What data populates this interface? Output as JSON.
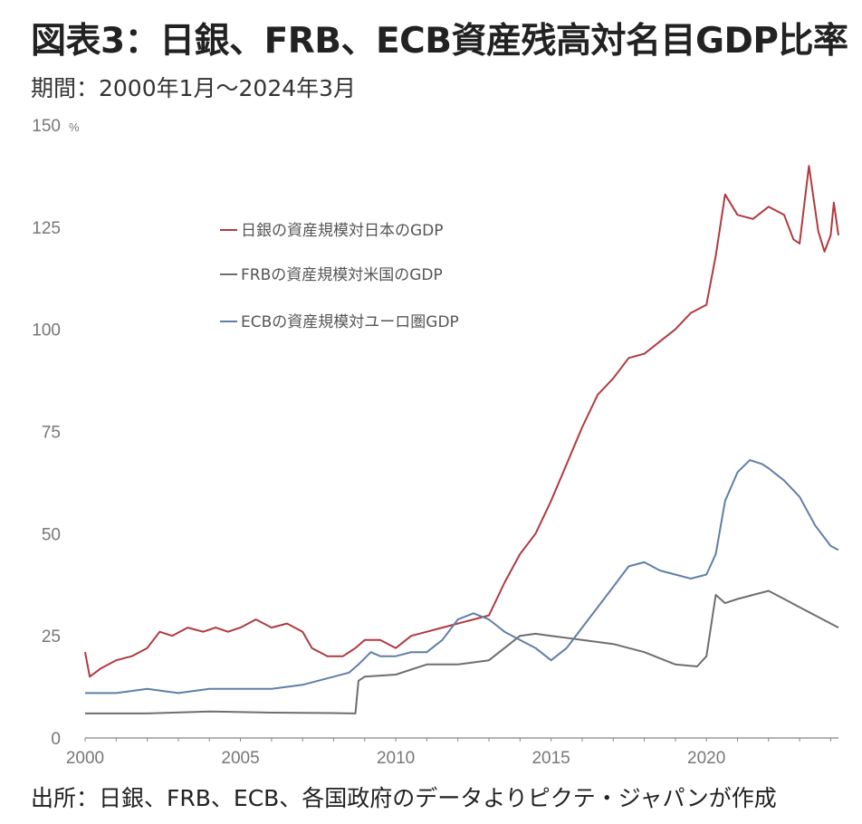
{
  "title": "図表3：日銀、FRB、ECB資産残高対名目GDP比率",
  "subtitle": "期間：2000年1月～2024年3月",
  "source": "出所：日銀、FRB、ECB、各国政府のデータよりピクテ・ジャパンが作成",
  "colors": {
    "boj": "#b03a3f",
    "frb": "#6e6e6e",
    "ecb": "#5f7fa8",
    "axis": "#888888",
    "text": "#777777"
  },
  "chart_data": {
    "type": "line",
    "ylim": [
      0,
      150
    ],
    "xlim": [
      2000,
      2024.25
    ],
    "y_unit": "%",
    "yticks": [
      0,
      25,
      50,
      75,
      100,
      125,
      150
    ],
    "xticks": [
      2000,
      2005,
      2010,
      2015,
      2020
    ],
    "legend_position": "top-left",
    "series": [
      {
        "name": "日銀の資産規模対日本のGDP",
        "color": "#b03a3f",
        "points": [
          [
            2000.0,
            21
          ],
          [
            2000.15,
            15
          ],
          [
            2000.5,
            17
          ],
          [
            2001.0,
            19
          ],
          [
            2001.5,
            20
          ],
          [
            2002.0,
            22
          ],
          [
            2002.4,
            26
          ],
          [
            2002.8,
            25
          ],
          [
            2003.3,
            27
          ],
          [
            2003.8,
            26
          ],
          [
            2004.2,
            27
          ],
          [
            2004.6,
            26
          ],
          [
            2005.0,
            27
          ],
          [
            2005.5,
            29
          ],
          [
            2006.0,
            27
          ],
          [
            2006.5,
            28
          ],
          [
            2007.0,
            26
          ],
          [
            2007.3,
            22
          ],
          [
            2007.8,
            20
          ],
          [
            2008.3,
            20
          ],
          [
            2008.7,
            22
          ],
          [
            2009.0,
            24
          ],
          [
            2009.5,
            24
          ],
          [
            2010.0,
            22
          ],
          [
            2010.5,
            25
          ],
          [
            2011.0,
            26
          ],
          [
            2011.5,
            27
          ],
          [
            2012.0,
            28
          ],
          [
            2012.5,
            29
          ],
          [
            2013.0,
            30
          ],
          [
            2013.5,
            38
          ],
          [
            2014.0,
            45
          ],
          [
            2014.5,
            50
          ],
          [
            2015.0,
            58
          ],
          [
            2015.5,
            67
          ],
          [
            2016.0,
            76
          ],
          [
            2016.5,
            84
          ],
          [
            2017.0,
            88
          ],
          [
            2017.5,
            93
          ],
          [
            2018.0,
            94
          ],
          [
            2018.5,
            97
          ],
          [
            2019.0,
            100
          ],
          [
            2019.5,
            104
          ],
          [
            2020.0,
            106
          ],
          [
            2020.3,
            118
          ],
          [
            2020.6,
            133
          ],
          [
            2021.0,
            128
          ],
          [
            2021.5,
            127
          ],
          [
            2022.0,
            130
          ],
          [
            2022.5,
            128
          ],
          [
            2022.8,
            122
          ],
          [
            2023.0,
            121
          ],
          [
            2023.3,
            140
          ],
          [
            2023.6,
            124
          ],
          [
            2023.8,
            119
          ],
          [
            2024.0,
            123
          ],
          [
            2024.1,
            131
          ],
          [
            2024.25,
            123
          ]
        ]
      },
      {
        "name": "FRBの資産規模対米国のGDP",
        "color": "#6e6e6e",
        "points": [
          [
            2000.0,
            6
          ],
          [
            2002.0,
            6
          ],
          [
            2004.0,
            6.5
          ],
          [
            2006.0,
            6.2
          ],
          [
            2008.0,
            6.1
          ],
          [
            2008.7,
            6
          ],
          [
            2008.8,
            14
          ],
          [
            2009.0,
            15
          ],
          [
            2010.0,
            15.5
          ],
          [
            2011.0,
            18
          ],
          [
            2012.0,
            18
          ],
          [
            2013.0,
            19
          ],
          [
            2014.0,
            25
          ],
          [
            2014.5,
            25.5
          ],
          [
            2015.0,
            25
          ],
          [
            2016.0,
            24
          ],
          [
            2017.0,
            23
          ],
          [
            2018.0,
            21
          ],
          [
            2019.0,
            18
          ],
          [
            2019.7,
            17.5
          ],
          [
            2020.0,
            20
          ],
          [
            2020.3,
            35
          ],
          [
            2020.6,
            33
          ],
          [
            2021.0,
            34
          ],
          [
            2021.5,
            35
          ],
          [
            2022.0,
            36
          ],
          [
            2022.5,
            34
          ],
          [
            2023.0,
            32
          ],
          [
            2023.5,
            30
          ],
          [
            2024.0,
            28
          ],
          [
            2024.25,
            27
          ]
        ]
      },
      {
        "name": "ECBの資産規模対ユーロ圏GDP",
        "color": "#5f7fa8",
        "points": [
          [
            2000.0,
            11
          ],
          [
            2001.0,
            11
          ],
          [
            2002.0,
            12
          ],
          [
            2003.0,
            11
          ],
          [
            2004.0,
            12
          ],
          [
            2005.0,
            12
          ],
          [
            2006.0,
            12
          ],
          [
            2007.0,
            13
          ],
          [
            2007.5,
            14
          ],
          [
            2008.0,
            15
          ],
          [
            2008.5,
            16
          ],
          [
            2008.8,
            18
          ],
          [
            2009.2,
            21
          ],
          [
            2009.5,
            20
          ],
          [
            2010.0,
            20
          ],
          [
            2010.5,
            21
          ],
          [
            2011.0,
            21
          ],
          [
            2011.5,
            24
          ],
          [
            2012.0,
            29
          ],
          [
            2012.5,
            30.5
          ],
          [
            2013.0,
            29
          ],
          [
            2013.5,
            26
          ],
          [
            2014.0,
            24
          ],
          [
            2014.5,
            22
          ],
          [
            2015.0,
            19
          ],
          [
            2015.5,
            22
          ],
          [
            2016.0,
            27
          ],
          [
            2016.5,
            32
          ],
          [
            2017.0,
            37
          ],
          [
            2017.5,
            42
          ],
          [
            2018.0,
            43
          ],
          [
            2018.5,
            41
          ],
          [
            2019.0,
            40
          ],
          [
            2019.5,
            39
          ],
          [
            2020.0,
            40
          ],
          [
            2020.3,
            45
          ],
          [
            2020.6,
            58
          ],
          [
            2021.0,
            65
          ],
          [
            2021.4,
            68
          ],
          [
            2021.8,
            67
          ],
          [
            2022.0,
            66
          ],
          [
            2022.5,
            63
          ],
          [
            2023.0,
            59
          ],
          [
            2023.5,
            52
          ],
          [
            2024.0,
            47
          ],
          [
            2024.25,
            46
          ]
        ]
      }
    ]
  }
}
